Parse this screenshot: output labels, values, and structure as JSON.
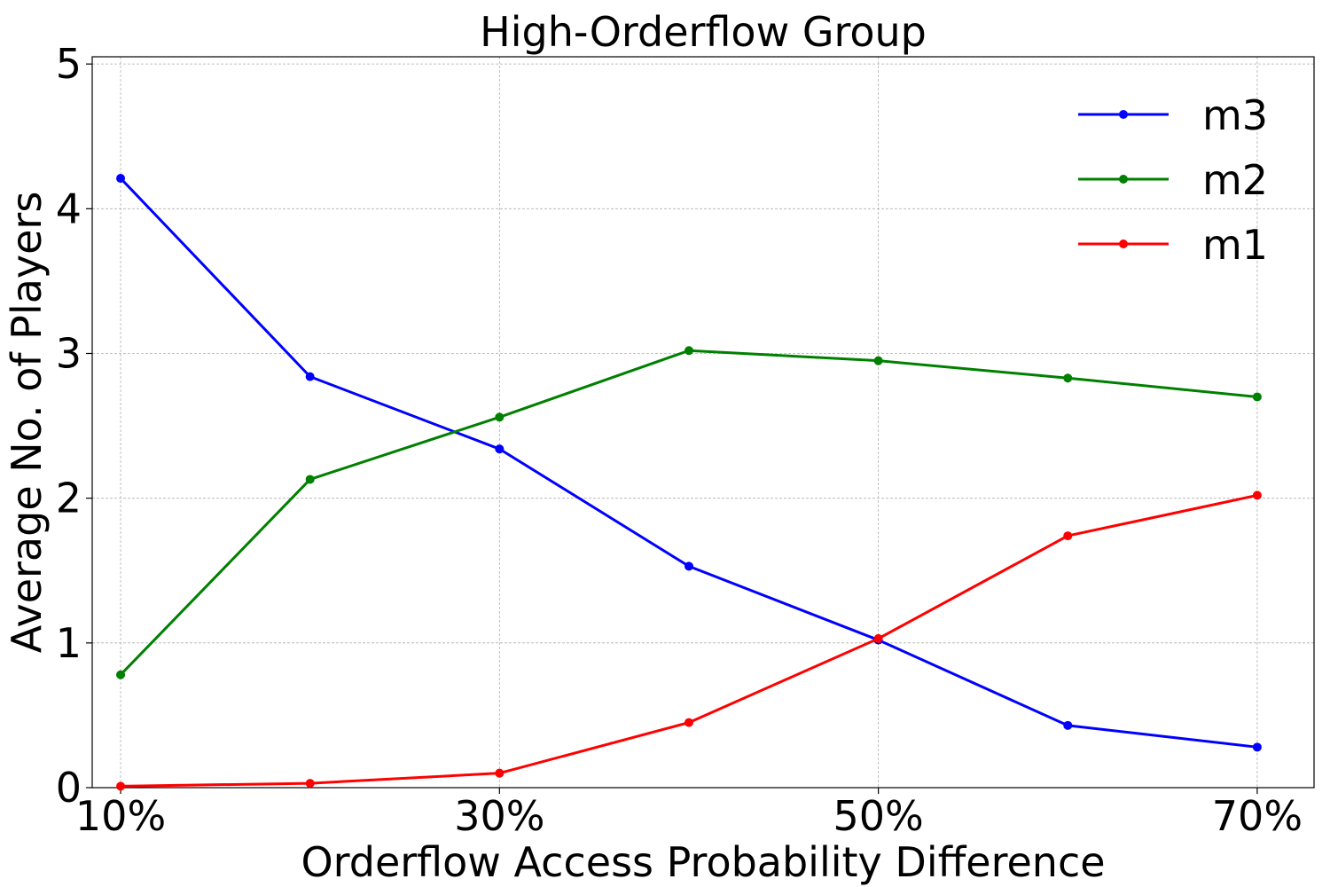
{
  "chart_data": {
    "type": "line",
    "title": "High-Orderflow Group",
    "xlabel": "Orderflow Access Probability Difference",
    "ylabel": "Average No. of Players",
    "x": [
      10,
      20,
      30,
      40,
      50,
      60,
      70
    ],
    "xticks": [
      10,
      30,
      50,
      70
    ],
    "xtick_labels": [
      "10%",
      "30%",
      "50%",
      "70%"
    ],
    "yticks": [
      0,
      1,
      2,
      3,
      4,
      5
    ],
    "yticks_labels": [
      "0",
      "1",
      "2",
      "3",
      "4",
      "5"
    ],
    "xlim": [
      8.5,
      73
    ],
    "ylim": [
      0,
      5.05
    ],
    "grid": true,
    "legend_position": "top-right",
    "series": [
      {
        "name": "m3",
        "color": "#0000ff",
        "values": [
          4.21,
          2.84,
          2.34,
          1.53,
          1.02,
          0.43,
          0.28
        ]
      },
      {
        "name": "m2",
        "color": "#008000",
        "values": [
          0.78,
          2.13,
          2.56,
          3.02,
          2.95,
          2.83,
          2.7
        ]
      },
      {
        "name": "m1",
        "color": "#ff0000",
        "values": [
          0.01,
          0.03,
          0.1,
          0.45,
          1.03,
          1.74,
          2.02
        ]
      }
    ]
  }
}
